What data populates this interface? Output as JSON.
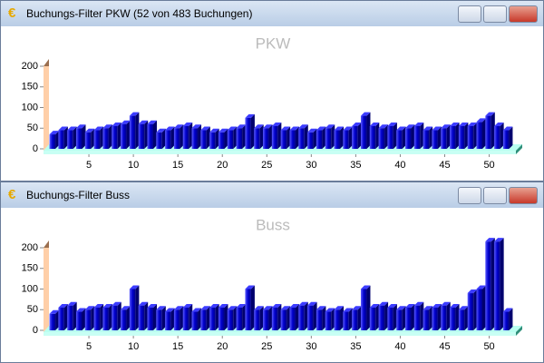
{
  "chart_data": [
    {
      "type": "bar",
      "window_title": "Buchungs-Filter PKW (52 von 483 Buchungen)",
      "title": "PKW",
      "x": [
        1,
        2,
        3,
        4,
        5,
        6,
        7,
        8,
        9,
        10,
        11,
        12,
        13,
        14,
        15,
        16,
        17,
        18,
        19,
        20,
        21,
        22,
        23,
        24,
        25,
        26,
        27,
        28,
        29,
        30,
        31,
        32,
        33,
        34,
        35,
        36,
        37,
        38,
        39,
        40,
        41,
        42,
        43,
        44,
        45,
        46,
        47,
        48,
        49,
        50,
        51,
        52
      ],
      "values": [
        35,
        45,
        45,
        50,
        40,
        45,
        50,
        55,
        60,
        80,
        60,
        60,
        40,
        45,
        50,
        55,
        50,
        45,
        40,
        40,
        45,
        50,
        75,
        50,
        50,
        55,
        45,
        45,
        50,
        40,
        45,
        50,
        45,
        45,
        55,
        80,
        55,
        50,
        55,
        45,
        50,
        55,
        45,
        45,
        50,
        55,
        55,
        55,
        65,
        80,
        55,
        45
      ],
      "color": "#0000cc",
      "xlim": [
        0,
        53
      ],
      "xticks": [
        5,
        10,
        15,
        20,
        25,
        30,
        35,
        40,
        45,
        50
      ],
      "ylim": [
        0,
        200
      ],
      "yticks": [
        0,
        50,
        100,
        150,
        200
      ]
    },
    {
      "type": "bar",
      "window_title": "Buchungs-Filter Buss",
      "title": "Buss",
      "x": [
        1,
        2,
        3,
        4,
        5,
        6,
        7,
        8,
        9,
        10,
        11,
        12,
        13,
        14,
        15,
        16,
        17,
        18,
        19,
        20,
        21,
        22,
        23,
        24,
        25,
        26,
        27,
        28,
        29,
        30,
        31,
        32,
        33,
        34,
        35,
        36,
        37,
        38,
        39,
        40,
        41,
        42,
        43,
        44,
        45,
        46,
        47,
        48,
        49,
        50,
        51,
        52
      ],
      "values": [
        40,
        55,
        60,
        45,
        50,
        55,
        55,
        60,
        50,
        100,
        60,
        55,
        50,
        45,
        50,
        55,
        45,
        50,
        55,
        55,
        50,
        55,
        100,
        50,
        50,
        55,
        50,
        55,
        60,
        60,
        50,
        45,
        50,
        45,
        50,
        100,
        55,
        60,
        55,
        50,
        55,
        60,
        50,
        55,
        60,
        55,
        50,
        90,
        100,
        215,
        215,
        45
      ],
      "color": "#0000cc",
      "xlim": [
        0,
        53
      ],
      "xticks": [
        5,
        10,
        15,
        20,
        25,
        30,
        35,
        40,
        45,
        50
      ],
      "ylim": [
        0,
        200
      ],
      "yticks": [
        0,
        50,
        100,
        150,
        200
      ]
    }
  ]
}
